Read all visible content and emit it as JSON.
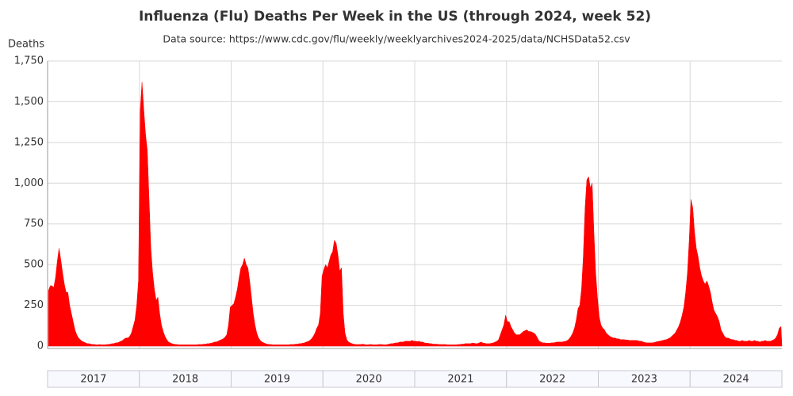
{
  "chart_data": {
    "type": "area",
    "title": "Influenza (Flu) Deaths Per Week in the US (through 2024, week 52)",
    "subtitle": "Data source: https://www.cdc.gov/flu/weekly/weeklyarchives2024-2025/data/NCHSData52.csv",
    "y_label": "Deaths",
    "color": "#ff0000",
    "grid": true,
    "ylim": [
      0,
      1750
    ],
    "yticks": [
      0,
      250,
      500,
      750,
      {
        "value": 1000,
        "label": "1,000"
      },
      {
        "value": 1250,
        "label": "1,250"
      },
      {
        "value": 1500,
        "label": "1,500"
      },
      {
        "value": 1750,
        "label": "1,750"
      }
    ],
    "categories": [
      "2017",
      "2018",
      "2019",
      "2020",
      "2021",
      "2022",
      "2023",
      "2024"
    ],
    "values": [
      [
        340,
        370,
        370,
        360,
        420,
        520,
        600,
        530,
        450,
        380,
        330,
        330,
        250,
        200,
        150,
        100,
        70,
        50,
        40,
        30,
        25,
        20,
        15,
        15,
        12,
        10,
        10,
        8,
        8,
        10,
        8,
        8,
        8,
        10,
        10,
        12,
        15,
        15,
        20,
        20,
        25,
        30,
        35,
        45,
        50,
        50,
        60,
        80,
        120,
        160,
        250,
        400
      ],
      [
        1450,
        1620,
        1450,
        1300,
        1200,
        900,
        600,
        450,
        350,
        280,
        300,
        200,
        130,
        90,
        60,
        40,
        25,
        20,
        15,
        12,
        10,
        10,
        8,
        8,
        8,
        8,
        8,
        8,
        8,
        8,
        8,
        8,
        8,
        10,
        10,
        10,
        12,
        12,
        15,
        15,
        18,
        20,
        25,
        25,
        30,
        35,
        40,
        45,
        55,
        70,
        130,
        240
      ],
      [
        250,
        260,
        300,
        350,
        420,
        480,
        500,
        540,
        500,
        480,
        400,
        300,
        200,
        130,
        80,
        50,
        35,
        25,
        20,
        15,
        12,
        10,
        10,
        8,
        8,
        8,
        8,
        8,
        8,
        8,
        8,
        8,
        8,
        10,
        10,
        10,
        12,
        12,
        15,
        15,
        18,
        20,
        25,
        28,
        35,
        45,
        60,
        80,
        110,
        130,
        200,
        430
      ],
      [
        470,
        500,
        480,
        520,
        560,
        580,
        650,
        630,
        560,
        460,
        480,
        200,
        80,
        40,
        25,
        20,
        15,
        12,
        10,
        10,
        10,
        10,
        12,
        10,
        8,
        8,
        10,
        10,
        8,
        8,
        8,
        10,
        10,
        10,
        8,
        8,
        10,
        12,
        15,
        15,
        18,
        20,
        20,
        25,
        25,
        25,
        30,
        30,
        30,
        30,
        35,
        30
      ],
      [
        30,
        28,
        30,
        25,
        25,
        20,
        18,
        18,
        15,
        15,
        12,
        12,
        12,
        10,
        10,
        10,
        10,
        10,
        8,
        8,
        8,
        8,
        8,
        8,
        10,
        10,
        12,
        12,
        15,
        15,
        15,
        15,
        18,
        18,
        15,
        15,
        20,
        25,
        20,
        18,
        15,
        15,
        15,
        18,
        20,
        25,
        30,
        40,
        70,
        100,
        130,
        190
      ],
      [
        150,
        150,
        120,
        100,
        80,
        70,
        70,
        70,
        80,
        90,
        95,
        100,
        90,
        90,
        85,
        80,
        70,
        50,
        30,
        25,
        20,
        20,
        18,
        18,
        18,
        20,
        20,
        22,
        25,
        25,
        25,
        25,
        28,
        30,
        35,
        45,
        60,
        80,
        110,
        160,
        230,
        250,
        350,
        550,
        850,
        1020,
        1040,
        970,
        1000,
        700,
        450,
        300
      ],
      [
        180,
        130,
        110,
        100,
        80,
        70,
        60,
        55,
        50,
        50,
        45,
        45,
        40,
        40,
        40,
        38,
        38,
        35,
        35,
        35,
        35,
        35,
        33,
        30,
        30,
        25,
        22,
        20,
        20,
        20,
        20,
        22,
        25,
        28,
        30,
        32,
        35,
        38,
        40,
        45,
        50,
        60,
        70,
        80,
        100,
        120,
        150,
        190,
        240,
        330,
        450,
        650
      ],
      [
        900,
        850,
        700,
        600,
        550,
        480,
        430,
        400,
        380,
        400,
        370,
        330,
        270,
        220,
        200,
        180,
        150,
        100,
        80,
        60,
        50,
        50,
        45,
        40,
        40,
        35,
        35,
        30,
        30,
        35,
        30,
        30,
        30,
        35,
        30,
        30,
        35,
        30,
        30,
        25,
        30,
        30,
        35,
        30,
        30,
        30,
        35,
        40,
        50,
        70,
        110,
        120
      ]
    ]
  }
}
